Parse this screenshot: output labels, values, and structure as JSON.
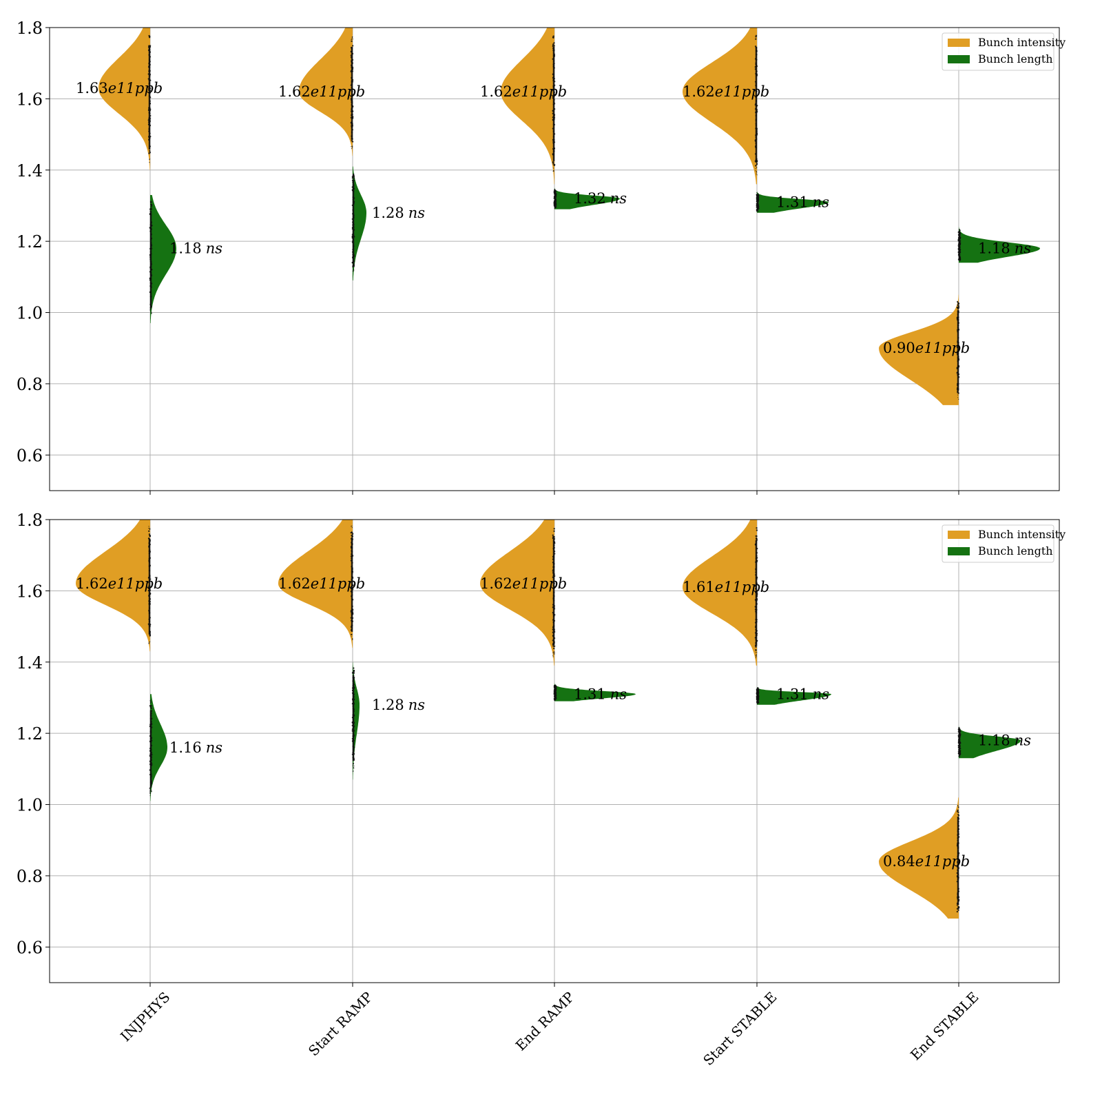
{
  "colors": {
    "intensity": "#e09e24",
    "length": "#157212",
    "grid": "#b0b0b0",
    "scatter": "#111111"
  },
  "chart_data": [
    {
      "type": "violin",
      "ylim": [
        0.5,
        1.8
      ],
      "yticks": [
        "0.6",
        "0.8",
        "1.0",
        "1.2",
        "1.4",
        "1.6",
        "1.8"
      ],
      "grid": true,
      "legend": {
        "placement": "top-right",
        "entries": [
          "Bunch intensity",
          "Bunch length"
        ]
      },
      "categories": [
        "INJPHYS",
        "Start RAMP",
        "End RAMP",
        "Start STABLE",
        "End STABLE"
      ],
      "series": [
        {
          "name": "Bunch intensity",
          "side": "left",
          "medians": [
            1.63,
            1.62,
            1.62,
            1.62,
            0.9
          ],
          "ranges": [
            [
              1.4,
              1.8
            ],
            [
              1.44,
              1.8
            ],
            [
              1.36,
              1.8
            ],
            [
              1.36,
              1.8
            ],
            [
              0.74,
              1.05
            ]
          ],
          "labels": [
            {
              "num": "1.63",
              "unit": "e11ppb"
            },
            {
              "num": "1.62",
              "unit": "e11ppb"
            },
            {
              "num": "1.62",
              "unit": "e11ppb"
            },
            {
              "num": "1.62",
              "unit": "e11ppb"
            },
            {
              "num": "0.90",
              "unit": "e11ppb"
            }
          ]
        },
        {
          "name": "Bunch length",
          "side": "right",
          "medians": [
            1.18,
            1.28,
            1.32,
            1.31,
            1.18
          ],
          "ranges": [
            [
              0.97,
              1.33
            ],
            [
              1.09,
              1.41
            ],
            [
              1.29,
              1.35
            ],
            [
              1.28,
              1.34
            ],
            [
              1.14,
              1.24
            ]
          ],
          "labels": [
            {
              "num": "1.18",
              "unit": "ns"
            },
            {
              "num": "1.28",
              "unit": "ns"
            },
            {
              "num": "1.32",
              "unit": "ns"
            },
            {
              "num": "1.31",
              "unit": "ns"
            },
            {
              "num": "1.18",
              "unit": "ns"
            }
          ]
        }
      ]
    },
    {
      "type": "violin",
      "ylim": [
        0.5,
        1.8
      ],
      "yticks": [
        "0.6",
        "0.8",
        "1.0",
        "1.2",
        "1.4",
        "1.6",
        "1.8"
      ],
      "grid": true,
      "legend": {
        "placement": "top-right",
        "entries": [
          "Bunch intensity",
          "Bunch length"
        ]
      },
      "categories": [
        "INJPHYS",
        "Start RAMP",
        "End RAMP",
        "Start STABLE",
        "End STABLE"
      ],
      "series": [
        {
          "name": "Bunch intensity",
          "side": "left",
          "medians": [
            1.62,
            1.62,
            1.62,
            1.61,
            0.84
          ],
          "ranges": [
            [
              1.43,
              1.8
            ],
            [
              1.44,
              1.8
            ],
            [
              1.39,
              1.8
            ],
            [
              1.39,
              1.8
            ],
            [
              0.68,
              1.02
            ]
          ],
          "labels": [
            {
              "num": "1.62",
              "unit": "e11ppb"
            },
            {
              "num": "1.62",
              "unit": "e11ppb"
            },
            {
              "num": "1.62",
              "unit": "e11ppb"
            },
            {
              "num": "1.61",
              "unit": "e11ppb"
            },
            {
              "num": "0.84",
              "unit": "e11ppb"
            }
          ]
        },
        {
          "name": "Bunch length",
          "side": "right",
          "medians": [
            1.16,
            1.28,
            1.31,
            1.31,
            1.18
          ],
          "ranges": [
            [
              1.01,
              1.31
            ],
            [
              1.07,
              1.4
            ],
            [
              1.29,
              1.34
            ],
            [
              1.28,
              1.33
            ],
            [
              1.13,
              1.22
            ]
          ],
          "labels": [
            {
              "num": "1.16",
              "unit": "ns"
            },
            {
              "num": "1.28",
              "unit": "ns"
            },
            {
              "num": "1.31",
              "unit": "ns"
            },
            {
              "num": "1.31",
              "unit": "ns"
            },
            {
              "num": "1.18",
              "unit": "ns"
            }
          ]
        }
      ]
    }
  ]
}
